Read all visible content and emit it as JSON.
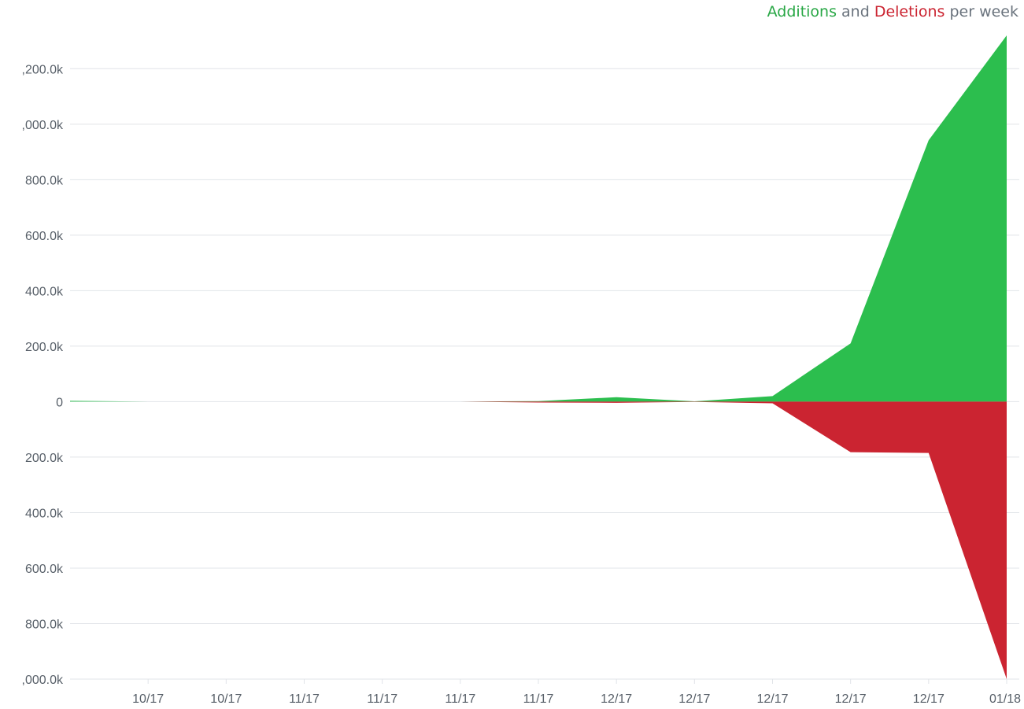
{
  "legend": {
    "additions": "Additions",
    "and": "and",
    "deletions": "Deletions",
    "suffix": "per week"
  },
  "colors": {
    "additions": "#2cbe4e",
    "deletions": "#cb2431",
    "grid": "#e1e4e8",
    "tick_text": "#586069"
  },
  "chart_data": {
    "type": "area",
    "title": "Additions and Deletions per week",
    "x": [
      0,
      1,
      2,
      3,
      4,
      5,
      6,
      7,
      8,
      9,
      10,
      11,
      12
    ],
    "x_tick_labels": [
      "10/17",
      "10/17",
      "11/17",
      "11/17",
      "11/17",
      "11/17",
      "12/17",
      "12/17",
      "12/17",
      "12/17",
      "12/17",
      "01/18"
    ],
    "x_tick_positions": [
      1,
      2,
      3,
      4,
      5,
      6,
      7,
      8,
      9,
      10,
      11,
      12
    ],
    "series": [
      {
        "name": "Additions",
        "values": [
          3000,
          0,
          0,
          0,
          0,
          0,
          2000,
          16000,
          1000,
          20000,
          210000,
          942000,
          1320000
        ]
      },
      {
        "name": "Deletions",
        "values": [
          0,
          0,
          0,
          0,
          0,
          0,
          -3000,
          -4000,
          -1000,
          -6000,
          -182000,
          -185000,
          -1000000
        ]
      }
    ],
    "y_ticks": [
      {
        "value": 1200000,
        "label": ",200.0k"
      },
      {
        "value": 1000000,
        "label": ",000.0k"
      },
      {
        "value": 800000,
        "label": "800.0k"
      },
      {
        "value": 600000,
        "label": "600.0k"
      },
      {
        "value": 400000,
        "label": "400.0k"
      },
      {
        "value": 200000,
        "label": "200.0k"
      },
      {
        "value": 0,
        "label": "0"
      },
      {
        "value": -200000,
        "label": "200.0k"
      },
      {
        "value": -400000,
        "label": "400.0k"
      },
      {
        "value": -600000,
        "label": "600.0k"
      },
      {
        "value": -800000,
        "label": "800.0k"
      },
      {
        "value": -1000000,
        "label": ",000.0k"
      }
    ],
    "ylim": [
      -1000000,
      1320000
    ],
    "xlim": [
      0,
      12
    ],
    "grid": true,
    "legend_position": "top-right"
  }
}
